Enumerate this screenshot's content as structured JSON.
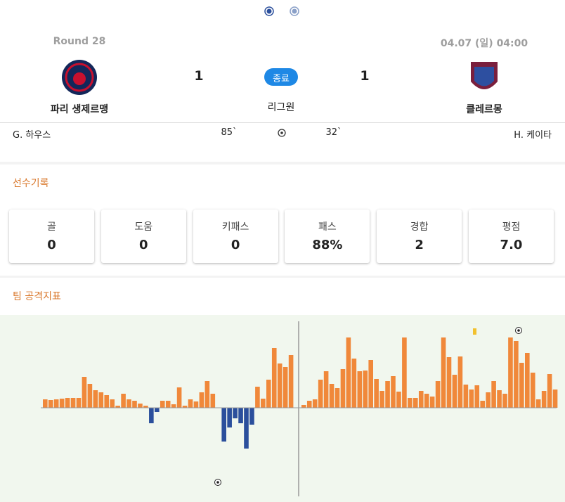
{
  "match": {
    "round": "Round 28",
    "datetime": "04.07 (일) 04:00",
    "status": "종료",
    "league": "리그원",
    "home": {
      "name": "파리 생제르맹",
      "score": 1
    },
    "away": {
      "name": "클레르몽",
      "score": 1
    }
  },
  "events": [
    {
      "home_player": "G. 하우스",
      "home_minute": "85`",
      "away_minute": "32`",
      "away_player": "H. 케이타"
    }
  ],
  "player_stats": {
    "title": "선수기록",
    "items": [
      {
        "label": "골",
        "value": "0"
      },
      {
        "label": "도움",
        "value": "0"
      },
      {
        "label": "키패스",
        "value": "0"
      },
      {
        "label": "패스",
        "value": "88%"
      },
      {
        "label": "경합",
        "value": "2"
      },
      {
        "label": "평점",
        "value": "7.0"
      }
    ]
  },
  "attack_index": {
    "title": "팀 공격지표",
    "positive_color": "#f0883a",
    "negative_color": "#2b4f9c",
    "first_half": [
      12,
      11,
      12,
      13,
      14,
      14,
      14,
      44,
      34,
      25,
      22,
      18,
      12,
      3,
      20,
      12,
      10,
      6,
      3,
      -22,
      -6,
      10,
      10,
      5,
      29,
      3,
      12,
      9,
      22,
      38,
      20,
      0,
      -48,
      -28,
      -15,
      -22,
      -58,
      -24,
      30,
      13,
      40,
      85,
      63,
      58,
      75
    ],
    "second_half": [
      4,
      10,
      12,
      40,
      52,
      34,
      28,
      55,
      100,
      70,
      52,
      53,
      68,
      41,
      24,
      38,
      45,
      23,
      100,
      14,
      14,
      24,
      20,
      16,
      38,
      100,
      72,
      47,
      73,
      33,
      26,
      32,
      10,
      22,
      38,
      25,
      20,
      100,
      95,
      64,
      78,
      50,
      12,
      24,
      48,
      26
    ]
  }
}
